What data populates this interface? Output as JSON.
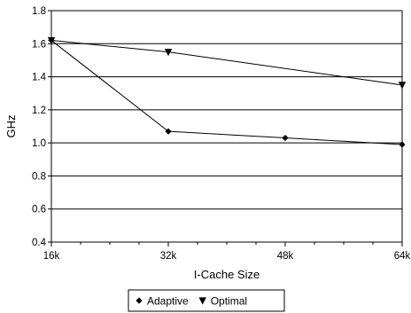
{
  "chart_data": {
    "type": "line",
    "xlabel": "I-Cache Size",
    "ylabel": "GHz",
    "x_categories": [
      "16k",
      "32k",
      "48k",
      "64k"
    ],
    "x_values": [
      16,
      32,
      48,
      64
    ],
    "xlim": [
      16,
      64
    ],
    "ylim": [
      0.4,
      1.8
    ],
    "y_ticks": [
      0.4,
      0.6,
      0.8,
      1.0,
      1.2,
      1.4,
      1.6,
      1.8
    ],
    "y_tick_labels": [
      "0.4",
      "0.6",
      "0.8",
      "1.0",
      "1.2",
      "1.4",
      "1.6",
      "1.8"
    ],
    "grid": "horizontal",
    "legend_position": "bottom",
    "series": [
      {
        "name": "Adaptive",
        "marker": "diamond",
        "color": "#000000",
        "points": [
          [
            16,
            1.62
          ],
          [
            32,
            1.07
          ],
          [
            48,
            1.03
          ],
          [
            64,
            0.99
          ]
        ]
      },
      {
        "name": "Optimal",
        "marker": "triangle-down",
        "color": "#000000",
        "points": [
          [
            16,
            1.62
          ],
          [
            32,
            1.55
          ],
          [
            64,
            1.35
          ]
        ]
      }
    ]
  }
}
